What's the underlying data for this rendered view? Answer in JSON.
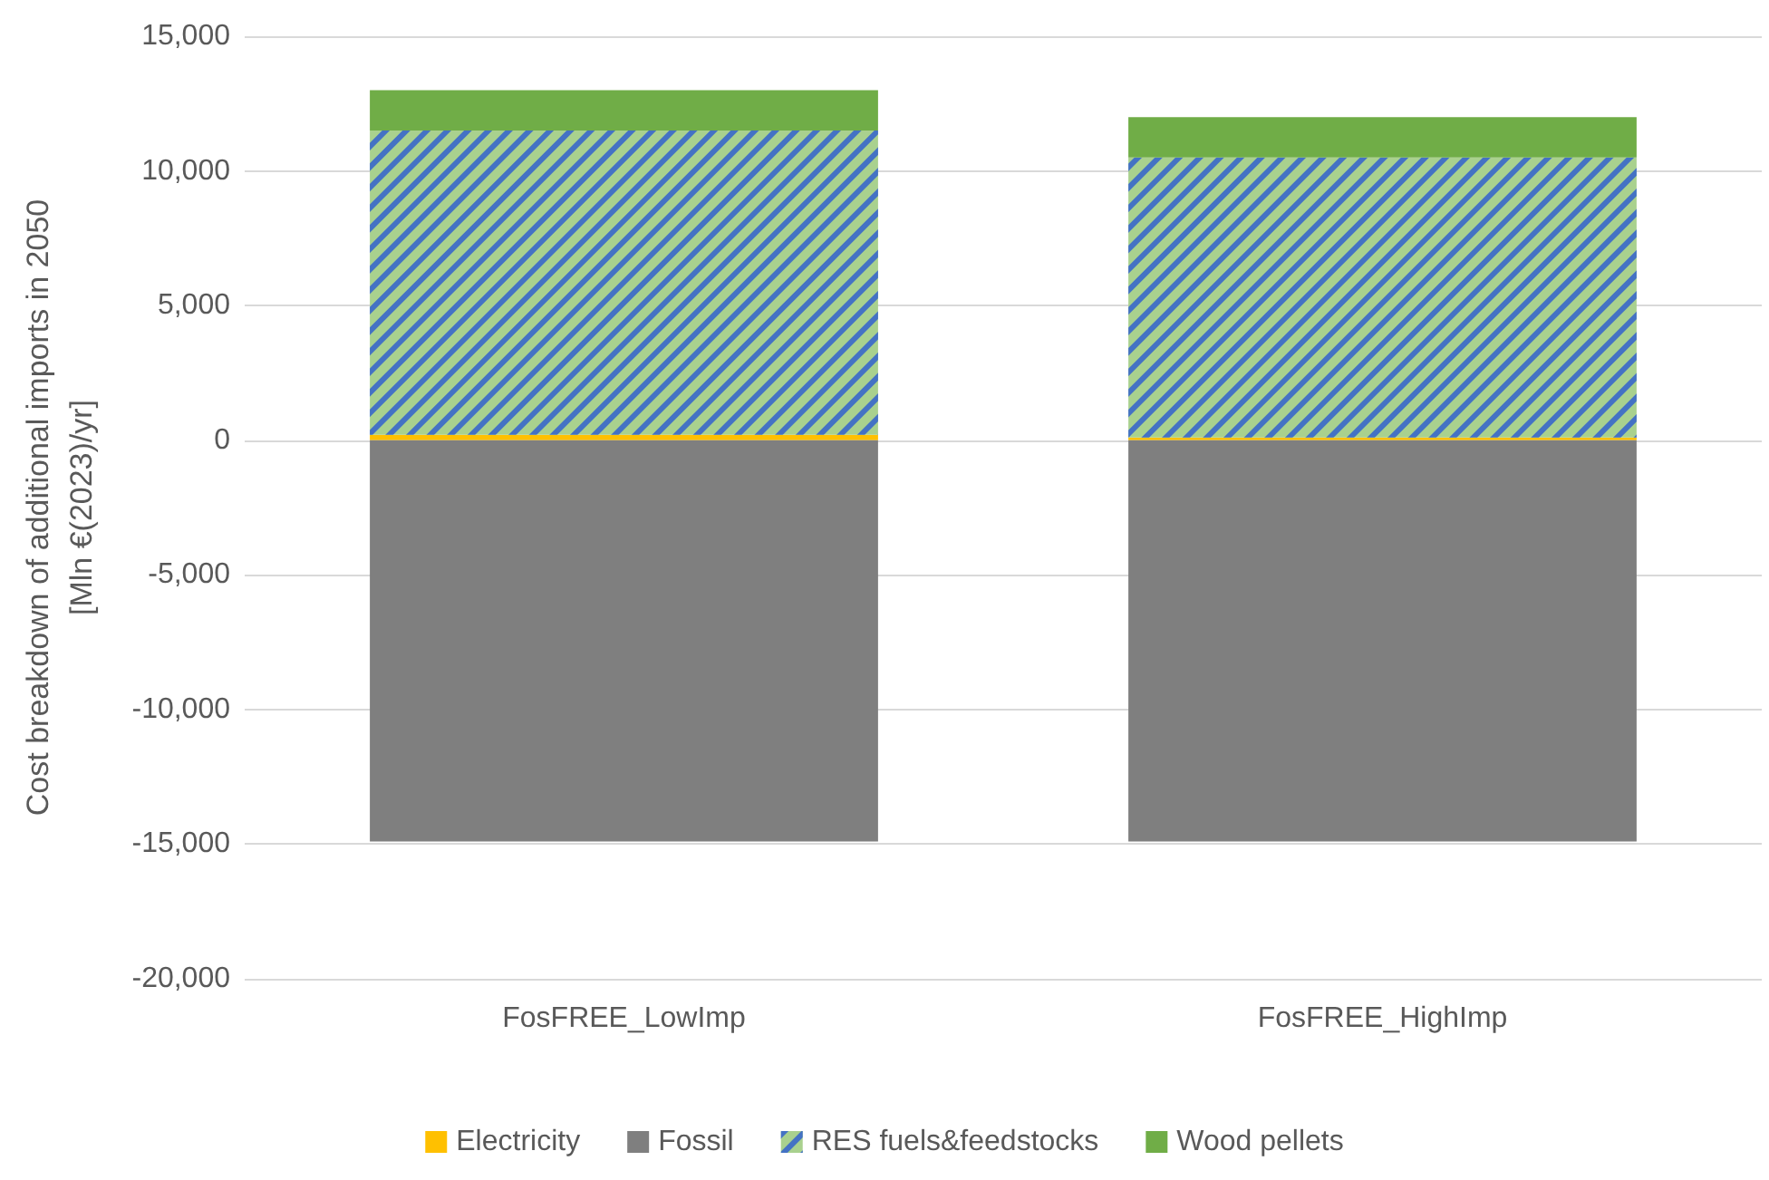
{
  "chart_data": {
    "type": "bar",
    "stacked": true,
    "ylabel": "Cost breakdown of additional imports in 2050\n[Mln €(2023)/yr]",
    "categories": [
      "FosFREE_LowImp",
      "FosFREE_HighImp"
    ],
    "series": [
      {
        "name": "Electricity",
        "color": "#ffc000",
        "values": [
          200,
          100
        ]
      },
      {
        "name": "Fossil",
        "color": "#7f7f7f",
        "values": [
          -14900,
          -14900
        ]
      },
      {
        "name": "RES fuels&feedstocks",
        "color": "#a9d18e",
        "values": [
          11300,
          10400
        ]
      },
      {
        "name": "Wood pellets",
        "color": "#70ad47",
        "values": [
          1500,
          1500
        ]
      }
    ],
    "ylim": [
      -20000,
      15000
    ],
    "yticks": [
      {
        "value": -20000,
        "label": "-20,000"
      },
      {
        "value": -15000,
        "label": "-15,000"
      },
      {
        "value": -10000,
        "label": "-10,000"
      },
      {
        "value": -5000,
        "label": "-5,000"
      },
      0,
      {
        "value": 5000,
        "label": "5,000"
      },
      {
        "value": 10000,
        "label": "10,000"
      },
      {
        "value": 15000,
        "label": "15,000"
      }
    ],
    "grid": "y",
    "legend": "bottom"
  }
}
